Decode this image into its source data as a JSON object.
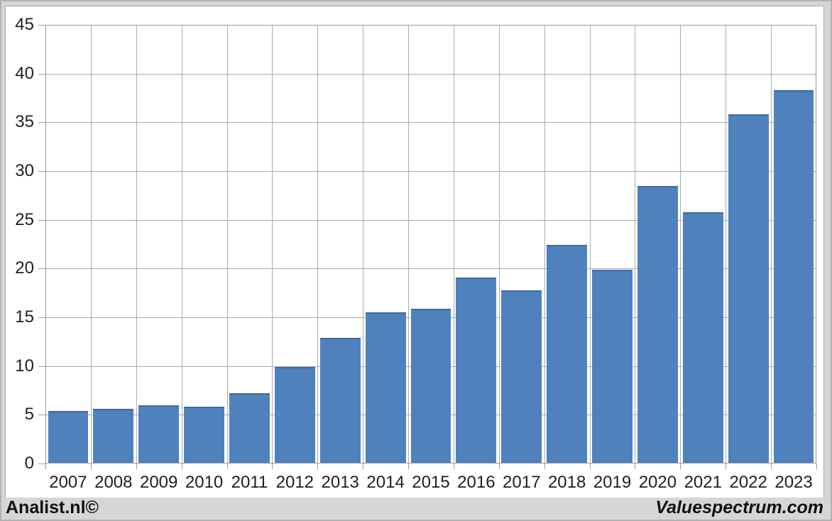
{
  "footer": {
    "left_brand": "Analist.nl©",
    "right_brand": "Valuespectrum.com"
  },
  "colors": {
    "bar": "#4f81bd",
    "bar_edge": "#44699b",
    "gridline": "#ababab",
    "axis": "#9a9a9a",
    "plot_background": "#ffffff",
    "frame_background": "#d6d6d6",
    "text": "#1f1f1f"
  },
  "chart_data": {
    "type": "bar",
    "title": "",
    "xlabel": "",
    "ylabel": "",
    "categories": [
      "2007",
      "2008",
      "2009",
      "2010",
      "2011",
      "2012",
      "2013",
      "2014",
      "2015",
      "2016",
      "2017",
      "2018",
      "2019",
      "2020",
      "2021",
      "2022",
      "2023"
    ],
    "values": [
      5.4,
      5.6,
      6.0,
      5.8,
      7.2,
      9.9,
      12.9,
      15.5,
      15.9,
      19.1,
      17.8,
      22.4,
      19.9,
      28.5,
      25.8,
      35.8,
      38.3
    ],
    "ylim": [
      0,
      45
    ],
    "ytick_step": 5,
    "ytick_labels": [
      "0",
      "5",
      "10",
      "15",
      "20",
      "25",
      "30",
      "35",
      "40",
      "45"
    ],
    "grid": true,
    "legend": null,
    "legend_position": "none"
  }
}
